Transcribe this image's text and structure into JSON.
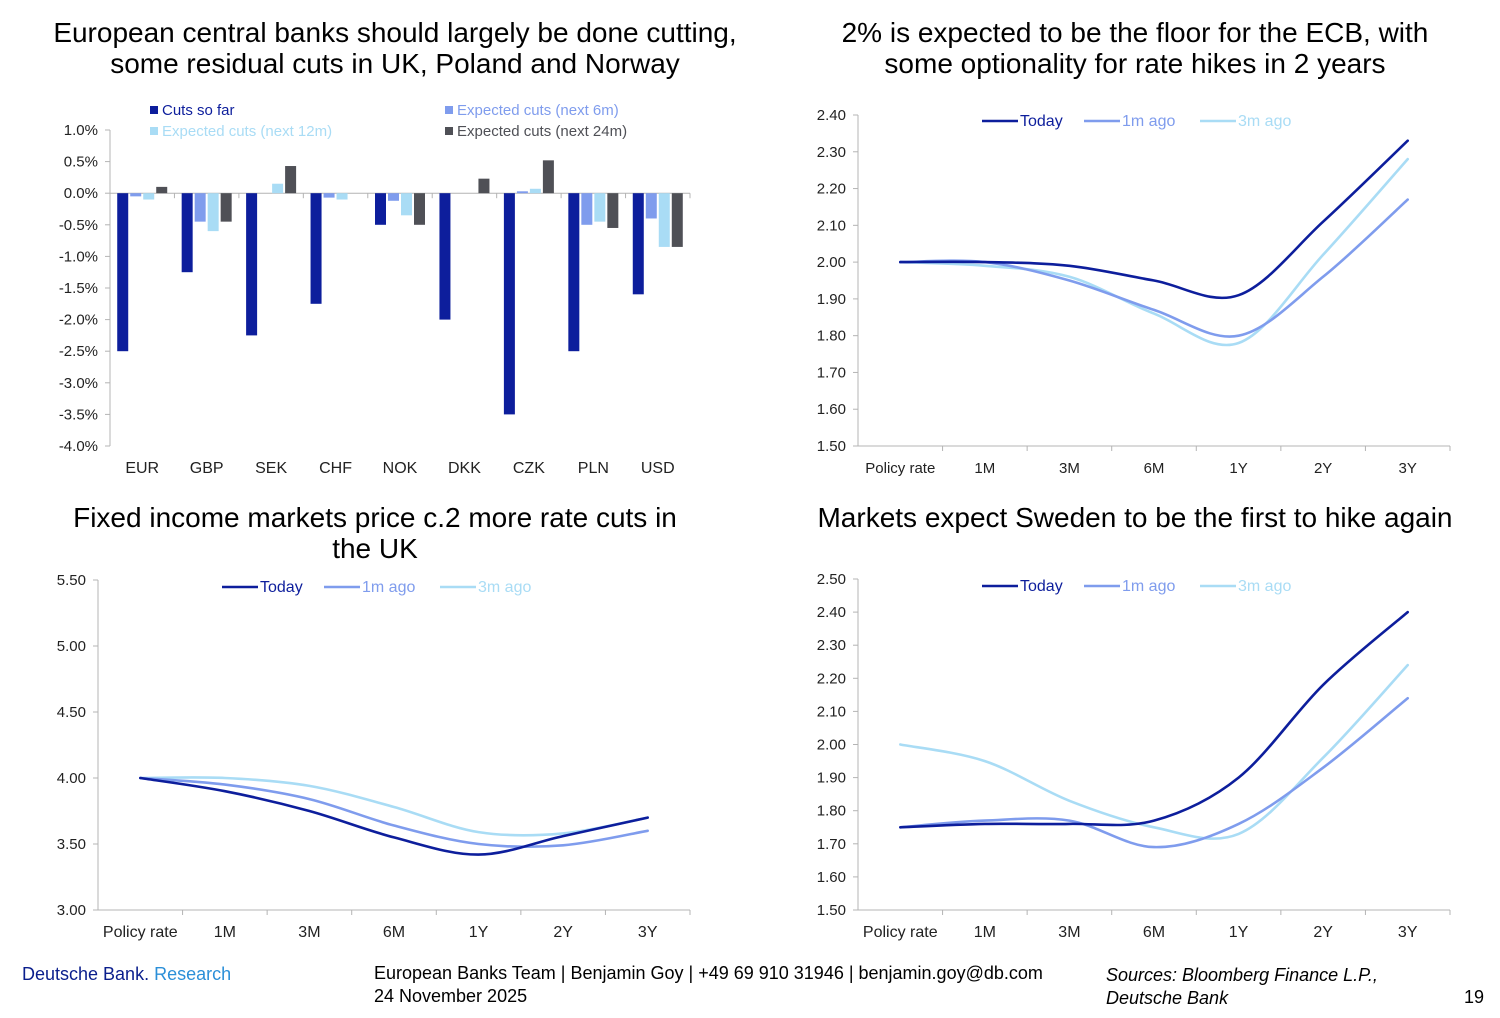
{
  "colors": {
    "navy": "#0d1e9c",
    "mid_blue": "#7f9ced",
    "light_blue": "#a9dcf5",
    "dark_grey": "#4f5056",
    "axis": "#b4b4b4",
    "brand_navy": "#0a1e8c",
    "brand_blue": "#2b8fd8"
  },
  "footer": {
    "brand": "Deutsche Bank.",
    "brand_research": "Research",
    "contact_line1": "European Banks Team | Benjamin Goy | +49 69 910 31946 | benjamin.goy@db.com",
    "contact_line2": "24 November 2025",
    "sources_line1": "Sources: Bloomberg Finance L.P.,",
    "sources_line2": "Deutsche Bank",
    "page_number": "19"
  },
  "chart_data": [
    {
      "type": "bar",
      "title_line1": "European central banks should largely be done cutting,",
      "title_line2": "some residual cuts in UK, Poland and Norway",
      "categories": [
        "EUR",
        "GBP",
        "SEK",
        "CHF",
        "NOK",
        "DKK",
        "CZK",
        "PLN",
        "USD"
      ],
      "series": [
        {
          "name": "Cuts so far",
          "color": "navy",
          "values": [
            -2.5,
            -1.25,
            -2.25,
            -1.75,
            -0.5,
            -2.0,
            -3.5,
            -2.5,
            -1.6
          ]
        },
        {
          "name": "Expected cuts (next 6m)",
          "color": "mid_blue",
          "values": [
            -0.05,
            -0.45,
            0.0,
            -0.07,
            -0.12,
            0.0,
            0.03,
            -0.5,
            -0.4
          ]
        },
        {
          "name": "Expected cuts (next 12m)",
          "color": "light_blue",
          "values": [
            -0.1,
            -0.6,
            0.15,
            -0.1,
            -0.35,
            0.0,
            0.07,
            -0.45,
            -0.85
          ]
        },
        {
          "name": "Expected cuts (next 24m)",
          "color": "dark_grey",
          "values": [
            0.1,
            -0.45,
            0.43,
            0.0,
            -0.5,
            0.23,
            0.52,
            -0.55,
            -0.85
          ]
        }
      ],
      "ylim": [
        -4.0,
        1.0
      ],
      "yticks": [
        "1.0%",
        "0.5%",
        "0.0%",
        "-0.5%",
        "-1.0%",
        "-1.5%",
        "-2.0%",
        "-2.5%",
        "-3.0%",
        "-3.5%",
        "-4.0%"
      ],
      "legend": "top"
    },
    {
      "type": "line",
      "title_line1": "2% is expected to be the floor for the ECB, with",
      "title_line2": "some optionality for rate hikes in 2 years",
      "x": [
        "Policy rate",
        "1M",
        "3M",
        "6M",
        "1Y",
        "2Y",
        "3Y"
      ],
      "series": [
        {
          "name": "Today",
          "color": "navy",
          "values": [
            2.0,
            2.0,
            1.99,
            1.95,
            1.91,
            2.11,
            2.33
          ]
        },
        {
          "name": "1m ago",
          "color": "mid_blue",
          "values": [
            2.0,
            2.0,
            1.95,
            1.87,
            1.8,
            1.96,
            2.17
          ]
        },
        {
          "name": "3m ago",
          "color": "light_blue",
          "values": [
            2.0,
            1.99,
            1.96,
            1.86,
            1.78,
            2.02,
            2.28
          ]
        }
      ],
      "ylim": [
        1.5,
        2.4
      ],
      "yticks": [
        "2.40",
        "2.30",
        "2.20",
        "2.10",
        "2.00",
        "1.90",
        "1.80",
        "1.70",
        "1.60",
        "1.50"
      ],
      "legend": "top"
    },
    {
      "type": "line",
      "title_line1": "Fixed income markets price c.2 more rate cuts in",
      "title_line2": "the UK",
      "x": [
        "Policy rate",
        "1M",
        "3M",
        "6M",
        "1Y",
        "2Y",
        "3Y"
      ],
      "series": [
        {
          "name": "Today",
          "color": "navy",
          "values": [
            4.0,
            3.9,
            3.75,
            3.55,
            3.42,
            3.56,
            3.7
          ]
        },
        {
          "name": "1m ago",
          "color": "mid_blue",
          "values": [
            4.0,
            3.95,
            3.84,
            3.64,
            3.5,
            3.49,
            3.6
          ]
        },
        {
          "name": "3m ago",
          "color": "light_blue",
          "values": [
            4.0,
            4.0,
            3.94,
            3.78,
            3.59,
            3.58,
            3.7
          ]
        }
      ],
      "ylim": [
        3.0,
        5.5
      ],
      "yticks": [
        "5.50",
        "5.00",
        "4.50",
        "4.00",
        "3.50",
        "3.00"
      ],
      "legend": "top"
    },
    {
      "type": "line",
      "title_line1": "Markets expect Sweden to be the first to hike again",
      "title_line2": "",
      "x": [
        "Policy rate",
        "1M",
        "3M",
        "6M",
        "1Y",
        "2Y",
        "3Y"
      ],
      "series": [
        {
          "name": "Today",
          "color": "navy",
          "values": [
            1.75,
            1.76,
            1.76,
            1.77,
            1.9,
            2.18,
            2.4
          ]
        },
        {
          "name": "1m ago",
          "color": "mid_blue",
          "values": [
            1.75,
            1.77,
            1.77,
            1.69,
            1.76,
            1.93,
            2.14
          ]
        },
        {
          "name": "3m ago",
          "color": "light_blue",
          "values": [
            2.0,
            1.95,
            1.83,
            1.75,
            1.73,
            1.96,
            2.24
          ]
        }
      ],
      "ylim": [
        1.5,
        2.5
      ],
      "yticks": [
        "2.50",
        "2.40",
        "2.30",
        "2.20",
        "2.10",
        "2.00",
        "1.90",
        "1.80",
        "1.70",
        "1.60",
        "1.50"
      ],
      "legend": "top"
    }
  ]
}
